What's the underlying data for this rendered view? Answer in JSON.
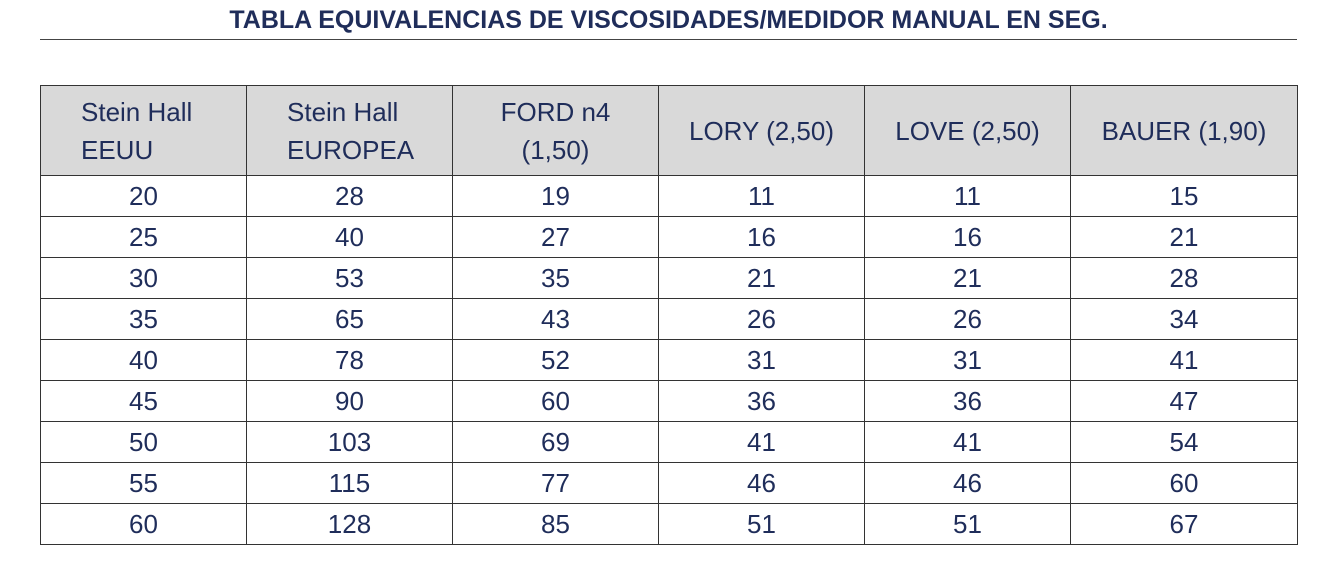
{
  "title": "TABLA EQUIVALENCIAS DE VISCOSIDADES/MEDIDOR MANUAL EN SEG.",
  "table": {
    "headers": [
      [
        "Stein Hall",
        "EEUU"
      ],
      [
        "Stein Hall",
        "EUROPEA"
      ],
      [
        "FORD n4",
        "(1,50)"
      ],
      [
        "LORY (2,50)"
      ],
      [
        "LOVE (2,50)"
      ],
      [
        "BAUER (1,90)"
      ]
    ],
    "rows": [
      [
        "20",
        "28",
        "19",
        "11",
        "11",
        "15"
      ],
      [
        "25",
        "40",
        "27",
        "16",
        "16",
        "21"
      ],
      [
        "30",
        "53",
        "35",
        "21",
        "21",
        "28"
      ],
      [
        "35",
        "65",
        "43",
        "26",
        "26",
        "34"
      ],
      [
        "40",
        "78",
        "52",
        "31",
        "31",
        "41"
      ],
      [
        "45",
        "90",
        "60",
        "36",
        "36",
        "47"
      ],
      [
        "50",
        "103",
        "69",
        "41",
        "41",
        "54"
      ],
      [
        "55",
        "115",
        "77",
        "46",
        "46",
        "60"
      ],
      [
        "60",
        "128",
        "85",
        "51",
        "51",
        "67"
      ]
    ]
  }
}
